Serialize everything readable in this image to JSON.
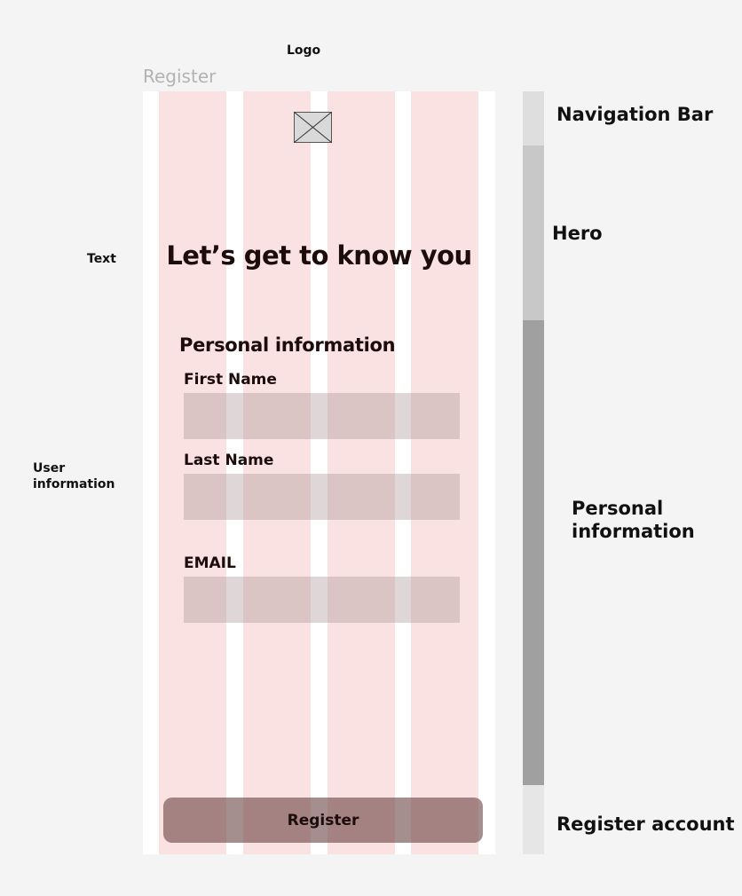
{
  "annotations_left": {
    "logo": "Logo",
    "text": "Text",
    "user_information": "User information"
  },
  "frame": {
    "title": "Register"
  },
  "logo_placeholder": {
    "icon": "image-placeholder-icon"
  },
  "hero": {
    "title": "Let’s get to know you"
  },
  "personal_information": {
    "heading": "Personal information",
    "fields": [
      {
        "label": "First Name",
        "value": "",
        "placeholder": ""
      },
      {
        "label": "Last Name",
        "value": "",
        "placeholder": ""
      },
      {
        "label": "EMAIL",
        "value": "",
        "placeholder": ""
      }
    ]
  },
  "register_button": {
    "label": "Register"
  },
  "sections_right": {
    "navigation_bar": "Navigation Bar",
    "hero": "Hero",
    "personal_information": "Personal information",
    "register_account": "Register account"
  },
  "colors": {
    "background": "#f4f4f4",
    "grid_column": "#f9e2e1",
    "input_fill": "#d9c4c4",
    "button_fill": "#9a8282",
    "text": "#1c0c0c"
  }
}
